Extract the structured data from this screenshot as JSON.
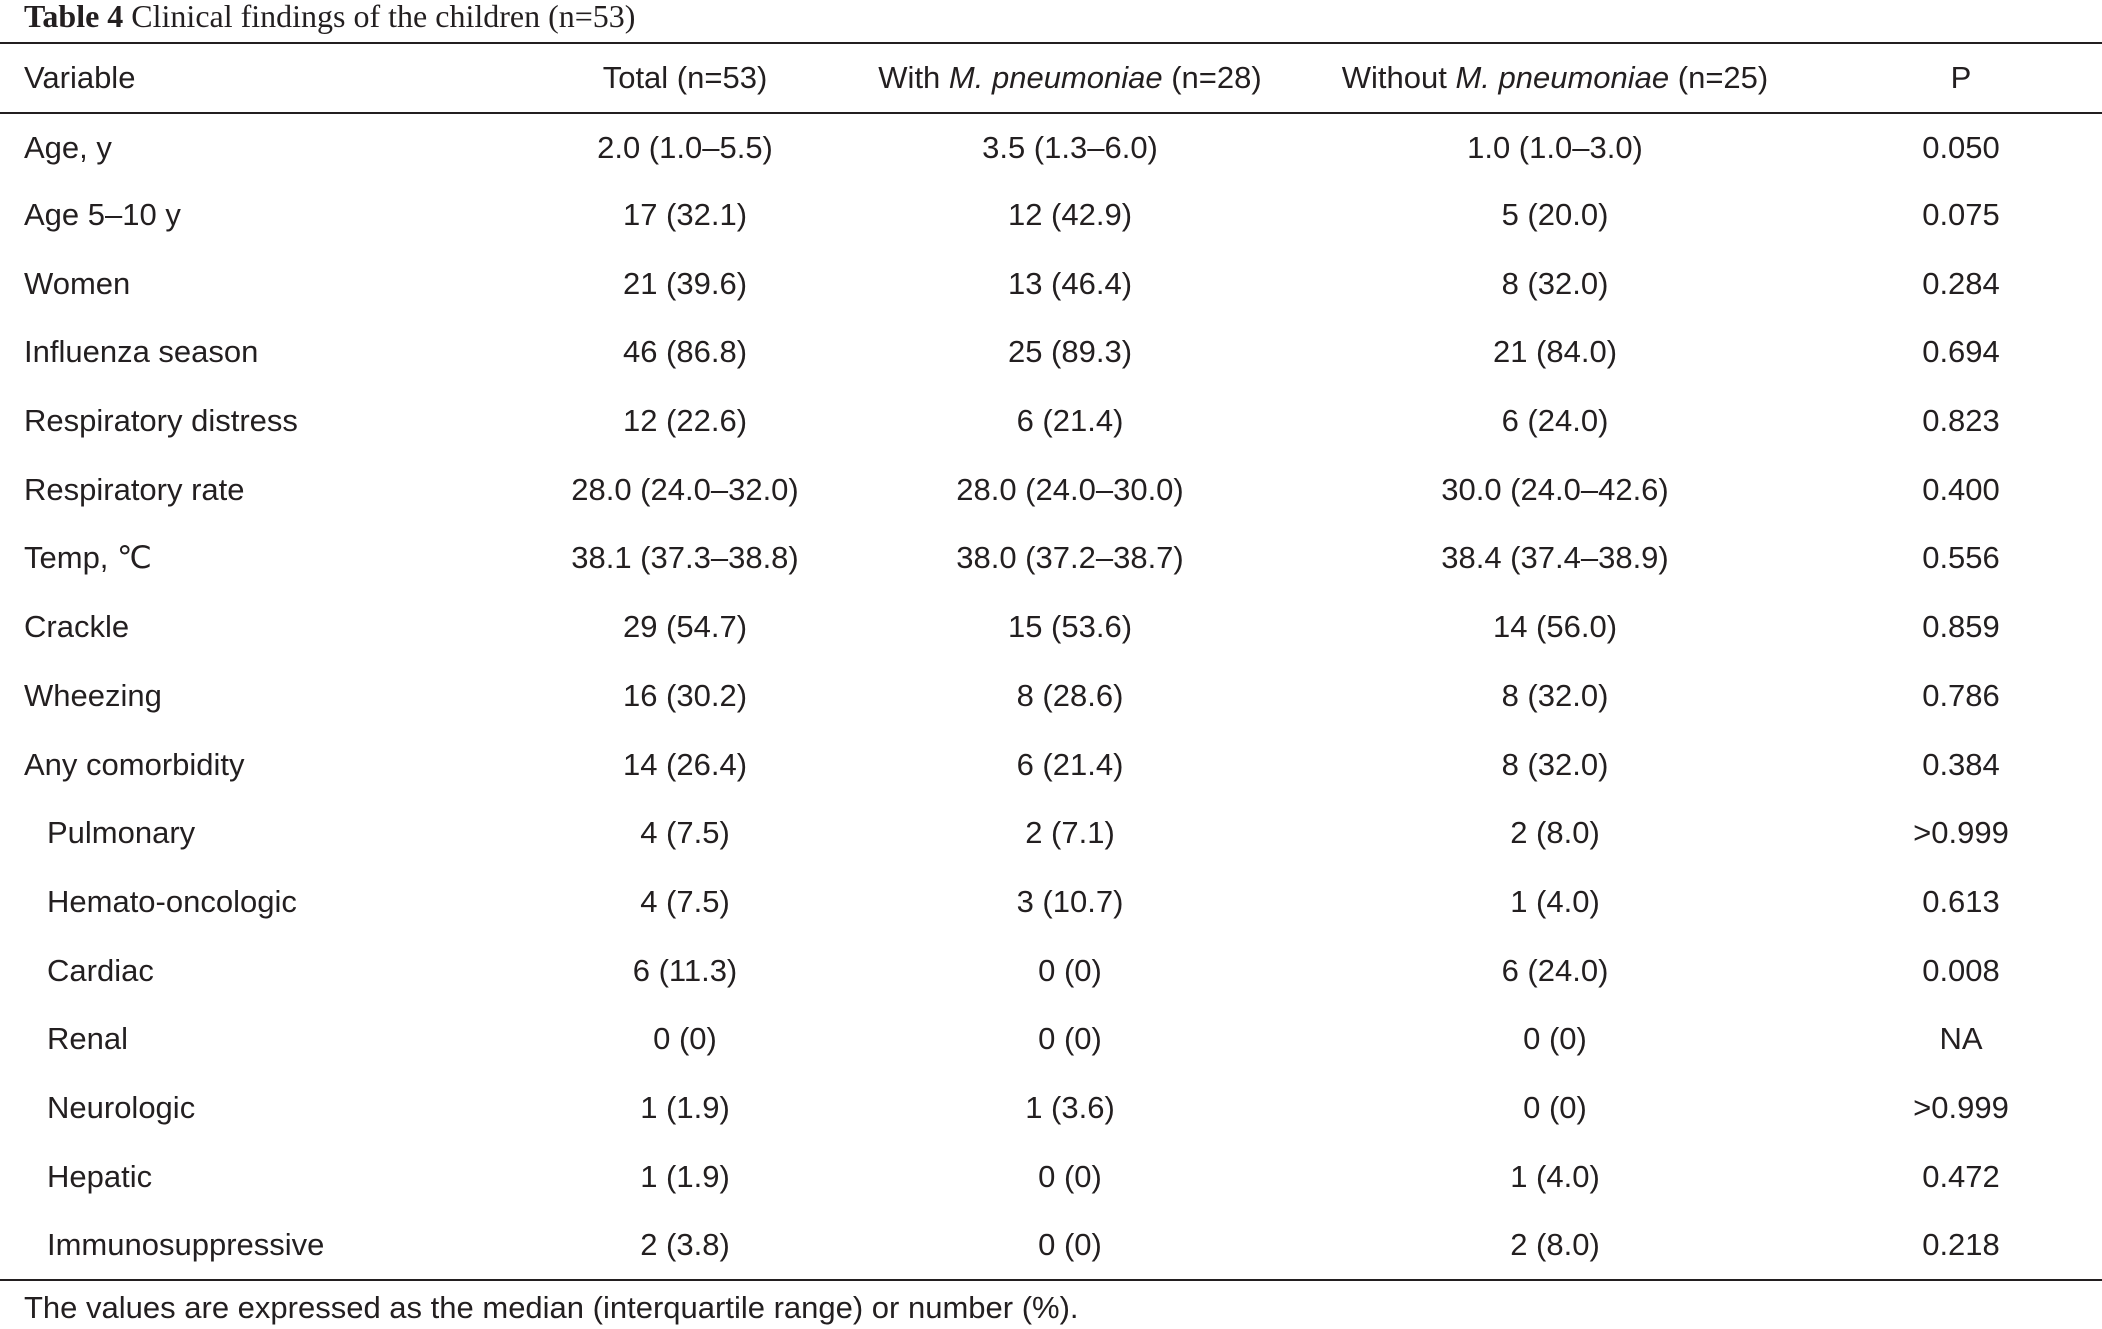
{
  "caption": {
    "label": "Table 4",
    "text": "Clinical findings of the children (n=53)"
  },
  "header": {
    "variable": "Variable",
    "total": "Total (n=53)",
    "with_prefix": "With ",
    "with_italic": "M. pneumoniae",
    "with_suffix": " (n=28)",
    "without_prefix": "Without ",
    "without_italic": "M. pneumoniae",
    "without_suffix": " (n=25)",
    "p": "P"
  },
  "rows": [
    {
      "variable": "Age, y",
      "total": "2.0 (1.0–5.5)",
      "with": "3.5 (1.3–6.0)",
      "without": "1.0 (1.0–3.0)",
      "p": "0.050"
    },
    {
      "variable": "Age 5–10 y",
      "total": "17 (32.1)",
      "with": "12 (42.9)",
      "without": "5 (20.0)",
      "p": "0.075"
    },
    {
      "variable": "Women",
      "total": "21 (39.6)",
      "with": "13 (46.4)",
      "without": "8 (32.0)",
      "p": "0.284"
    },
    {
      "variable": "Influenza season",
      "total": "46 (86.8)",
      "with": "25 (89.3)",
      "without": "21 (84.0)",
      "p": "0.694"
    },
    {
      "variable": "Respiratory distress",
      "total": "12 (22.6)",
      "with": "6 (21.4)",
      "without": "6 (24.0)",
      "p": "0.823"
    },
    {
      "variable": "Respiratory rate",
      "total": "28.0 (24.0–32.0)",
      "with": "28.0 (24.0–30.0)",
      "without": "30.0 (24.0–42.6)",
      "p": "0.400"
    },
    {
      "variable": "Temp, ℃",
      "total": "38.1 (37.3–38.8)",
      "with": "38.0 (37.2–38.7)",
      "without": "38.4 (37.4–38.9)",
      "p": "0.556"
    },
    {
      "variable": "Crackle",
      "total": "29 (54.7)",
      "with": "15 (53.6)",
      "without": "14 (56.0)",
      "p": "0.859"
    },
    {
      "variable": "Wheezing",
      "total": "16 (30.2)",
      "with": "8 (28.6)",
      "without": "8 (32.0)",
      "p": "0.786"
    },
    {
      "variable": "Any comorbidity",
      "total": "14 (26.4)",
      "with": "6 (21.4)",
      "without": "8 (32.0)",
      "p": "0.384"
    },
    {
      "variable": "Pulmonary",
      "total": "4 (7.5)",
      "with": "2 (7.1)",
      "without": "2 (8.0)",
      "p": ">0.999"
    },
    {
      "variable": "Hemato-oncologic",
      "total": "4 (7.5)",
      "with": "3 (10.7)",
      "without": "1 (4.0)",
      "p": "0.613"
    },
    {
      "variable": "Cardiac",
      "total": "6 (11.3)",
      "with": "0 (0)",
      "without": "6 (24.0)",
      "p": "0.008"
    },
    {
      "variable": "Renal",
      "total": "0 (0)",
      "with": "0 (0)",
      "without": "0 (0)",
      "p": "NA"
    },
    {
      "variable": "Neurologic",
      "total": "1 (1.9)",
      "with": "1 (3.6)",
      "without": "0 (0)",
      "p": ">0.999"
    },
    {
      "variable": "Hepatic",
      "total": "1 (1.9)",
      "with": "0 (0)",
      "without": "1 (4.0)",
      "p": "0.472"
    },
    {
      "variable": "Immunosuppressive",
      "total": "2 (3.8)",
      "with": "0 (0)",
      "without": "2 (8.0)",
      "p": "0.218"
    }
  ],
  "footnote": "The values are expressed as the median (interquartile range) or number (%)."
}
